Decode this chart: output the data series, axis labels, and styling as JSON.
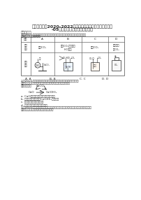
{
  "title_line1": "四川省乐山市2020-2022三年中考化学真题知识点分类汇编",
  "title_line2": "-05酸和碱、中和反应，盐和化肥",
  "section1": "一、单选题",
  "q1_line1": "1.（2021届乐山市中考真题）根据图示信息判断，在如图装置中，下列装置",
  "q1_line2": "能达到相应实验目的的是",
  "table_headers": [
    "选项",
    "A",
    "B",
    "C",
    "D"
  ],
  "table_row1_label": "实验目的",
  "table_purposes": [
    "稀释CO₂",
    "除去CO₂中混有的\nHCl气体",
    "干燥CO₂",
    "收集气体\n用CO₂"
  ],
  "table_row2_label": "实验装置",
  "options_q1": [
    "A. A",
    "B. B",
    "C. C",
    "D. D"
  ],
  "q2_line1": "2.（2021届乐山市中考真题）如右图所示，下列有关该图",
  "q2_line2": "的叙述，氢氧化钙与盐酸反应中下列有关该图叙述正确",
  "q2_line3": "的，下列叙述正确的是",
  "q2_opts": [
    "a. CaO能与盐反应过，是一种重要来料",
    "b. 加入其他物质继续道后Ca(OH)₂工业完成",
    "c. 如右边向左，石灰石就量",
    "d. 如右边可用来改良土壤的用途"
  ],
  "q3_line1": "3.（2022届乐山市中考真题）向一定量的稀盐酸中，分别加入足量的水、金属钠、",
  "q3_line2": "氢氧化钠、碳酸钠，下列图示中正确的是",
  "bg_color": "#ffffff",
  "text_color": "#2a2a2a",
  "border_color": "#666666",
  "title_fs": 4.8,
  "body_fs": 3.6,
  "small_fs": 3.2
}
